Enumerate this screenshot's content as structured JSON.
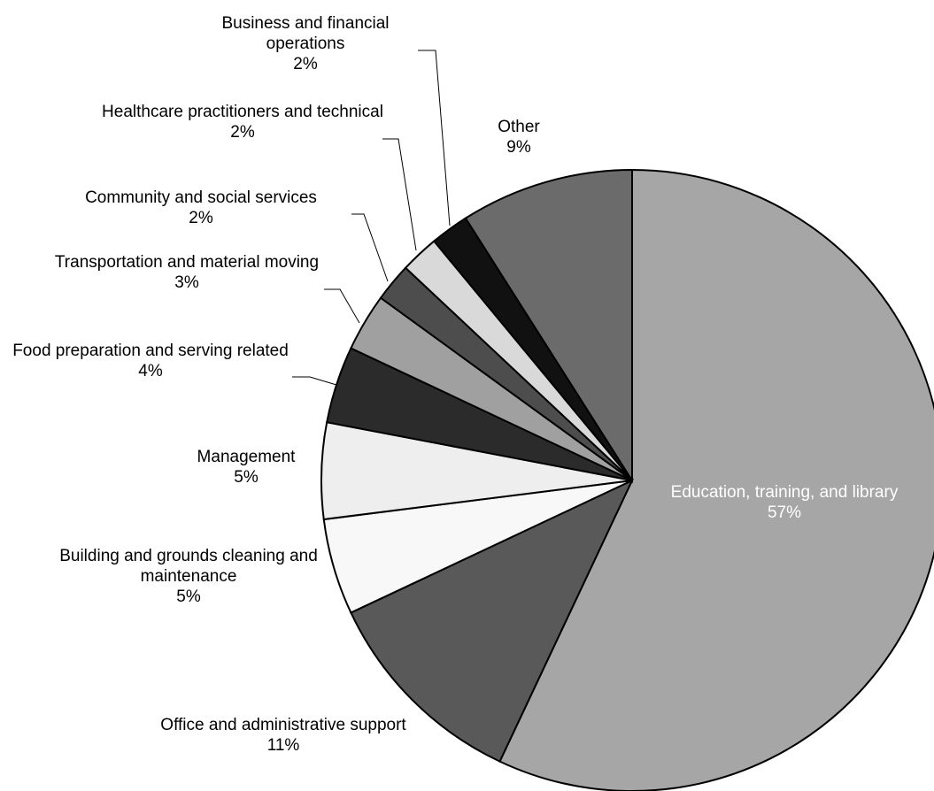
{
  "chart_data": {
    "type": "pie",
    "categories": [
      "Education, training, and library",
      "Office and administrative support",
      "Building and grounds cleaning and maintenance",
      "Management",
      "Food preparation and serving related",
      "Transportation and material moving",
      "Community and social services",
      "Healthcare practitioners and technical",
      "Business and financial operations",
      "Other"
    ],
    "values": [
      57,
      11,
      5,
      5,
      4,
      3,
      2,
      2,
      2,
      9
    ],
    "value_labels": [
      "57%",
      "11%",
      "5%",
      "5%",
      "4%",
      "3%",
      "2%",
      "2%",
      "2%",
      "9%"
    ],
    "colors": [
      "#a6a6a6",
      "#595959",
      "#f8f8f8",
      "#eeeeee",
      "#2b2b2b",
      "#a0a0a0",
      "#4d4d4d",
      "#d9d9d9",
      "#111111",
      "#6b6b6b"
    ]
  }
}
